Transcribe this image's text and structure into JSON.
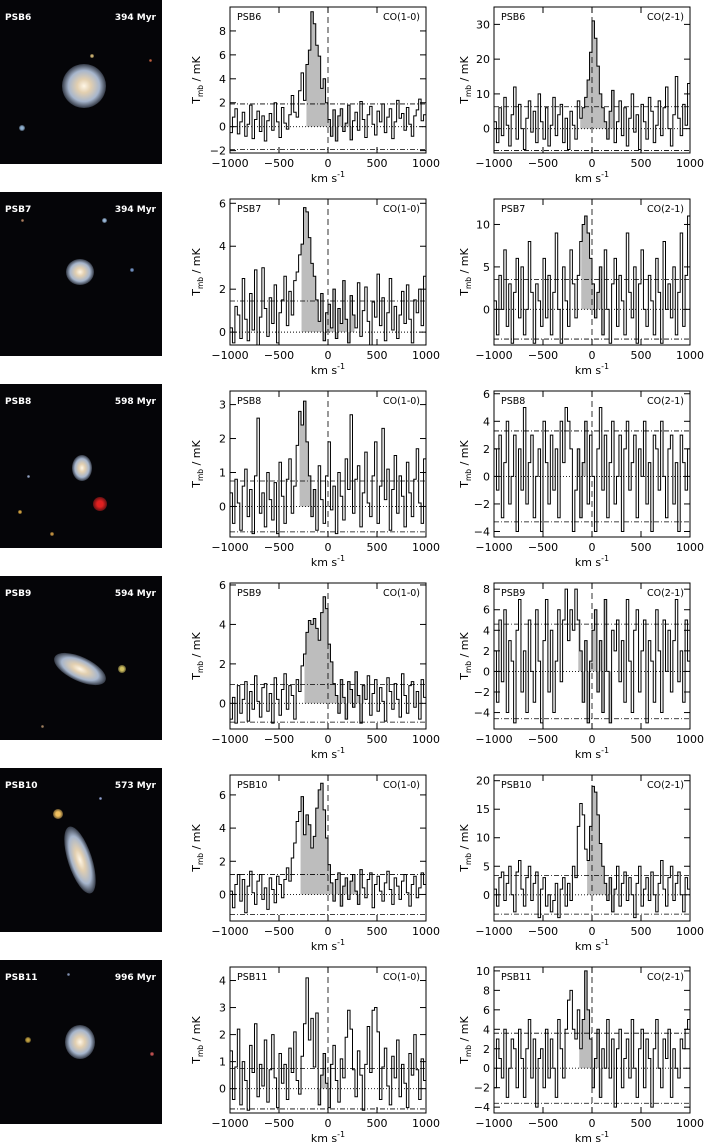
{
  "panels": [
    {
      "name": "PSB6",
      "age": "394 Myr",
      "thumb": {
        "stars": [
          {
            "c": "#8fb0d0"
          },
          {
            "c": "#c9b070"
          },
          {
            "c": "#c06040"
          }
        ]
      }
    },
    {
      "name": "PSB7",
      "age": "394 Myr",
      "thumb": {
        "stars": [
          {
            "c": "#9ab8d8"
          },
          {
            "c": "#b08060"
          },
          {
            "c": "#7090c0"
          }
        ]
      }
    },
    {
      "name": "PSB8",
      "age": "598 Myr",
      "thumb": {
        "stars": [
          {
            "c": "#e02020"
          },
          {
            "c": "#c09040"
          },
          {
            "c": "#d0a040"
          },
          {
            "c": "#90a0c0"
          }
        ]
      }
    },
    {
      "name": "PSB9",
      "age": "594 Myr",
      "thumb": {
        "stars": [
          {
            "c": "#d0c060"
          },
          {
            "c": "#a08060"
          }
        ]
      }
    },
    {
      "name": "PSB10",
      "age": "573 Myr",
      "thumb": {
        "stars": [
          {
            "c": "#f0c060"
          },
          {
            "c": "#90a0d0"
          }
        ]
      }
    },
    {
      "name": "PSB11",
      "age": "996 Myr",
      "thumb": {
        "stars": [
          {
            "c": "#c0a040"
          },
          {
            "c": "#8090b0"
          },
          {
            "c": "#c05050"
          }
        ]
      }
    }
  ],
  "xlabel": "km s",
  "xlabel_exp": "-1",
  "ylabel_main": "T",
  "ylabel_sub": "mb",
  "ylabel_unit": " / mK",
  "chart_data": [
    {
      "type": "line",
      "galaxy": "PSB6",
      "line": "CO(1-0)",
      "xlim": [
        -1000,
        1000
      ],
      "ylim": [
        -2.2,
        10
      ],
      "yticks": [
        -2,
        0,
        2,
        4,
        6,
        8
      ],
      "xticks": [
        -1000,
        -500,
        0,
        500,
        1000
      ],
      "rms": 1.9,
      "shade": [
        -220,
        250
      ],
      "y": [
        -0.5,
        0.8,
        1.5,
        -0.6,
        0.4,
        1.2,
        -0.8,
        0.2,
        1.8,
        -1.0,
        0.6,
        1.3,
        -0.4,
        0.9,
        -1.2,
        0.5,
        1.1,
        -0.3,
        2.0,
        0.4,
        -0.9,
        1.6,
        0.3,
        -0.2,
        1.0,
        2.6,
        1.2,
        0.8,
        3.0,
        4.5,
        2.2,
        5.2,
        6.4,
        9.6,
        8.6,
        6.8,
        5.9,
        3.2,
        4.0,
        2.0,
        0.6,
        -0.8,
        1.4,
        -1.2,
        0.9,
        1.5,
        -0.4,
        0.3,
        1.8,
        -1.1,
        0.5,
        1.2,
        -0.3,
        2.1,
        0.6,
        -0.9,
        1.0,
        1.7,
        0.2,
        -0.7,
        1.3,
        0.4,
        1.9,
        -0.5,
        0.8,
        1.5,
        -1.0,
        0.4,
        2.2,
        0.7,
        1.1,
        -0.3,
        1.6,
        0.2,
        -0.8,
        0.9,
        1.4,
        2.3,
        0.5,
        1.0
      ]
    },
    {
      "type": "line",
      "galaxy": "PSB6",
      "line": "CO(2-1)",
      "xlim": [
        -1000,
        1000
      ],
      "ylim": [
        -7,
        35
      ],
      "yticks": [
        0,
        10,
        20,
        30
      ],
      "xticks": [
        -1000,
        -500,
        0,
        500,
        1000
      ],
      "rms": 6.3,
      "shade": [
        -120,
        230
      ],
      "y": [
        2,
        -4,
        6,
        -2,
        9,
        1,
        -5,
        4,
        12,
        -3,
        7,
        0,
        -6,
        3,
        8,
        -1,
        5,
        -4,
        10,
        2,
        -3,
        6,
        -5,
        1,
        9,
        -2,
        4,
        7,
        -4,
        3,
        -6,
        5,
        1,
        -3,
        8,
        3,
        6,
        9,
        14,
        22,
        31,
        26,
        18,
        10,
        6,
        2,
        -3,
        5,
        11,
        -4,
        2,
        8,
        -2,
        6,
        -5,
        3,
        10,
        -1,
        4,
        -6,
        7,
        2,
        -3,
        9,
        5,
        -4,
        1,
        8,
        -2,
        6,
        12,
        0,
        -5,
        4,
        15,
        3,
        -2,
        7,
        1,
        13
      ]
    },
    {
      "type": "line",
      "galaxy": "PSB7",
      "line": "CO(1-0)",
      "xlim": [
        -1000,
        1000
      ],
      "ylim": [
        -0.6,
        6.2
      ],
      "yticks": [
        0,
        2,
        4,
        6
      ],
      "xticks": [
        -1000,
        -500,
        0,
        500,
        1000
      ],
      "rms": 1.45,
      "shade": [
        -270,
        270
      ],
      "y": [
        0.2,
        -0.5,
        1.2,
        0.8,
        -0.3,
        2.5,
        0.6,
        -0.4,
        1.8,
        0.1,
        2.9,
        -0.6,
        0.7,
        3.0,
        1.1,
        -0.2,
        1.6,
        0.4,
        2.2,
        -0.5,
        0.9,
        1.5,
        2.6,
        0.3,
        1.9,
        0.8,
        2.4,
        2.8,
        3.6,
        4.1,
        5.8,
        5.6,
        4.4,
        3.2,
        2.6,
        1.5,
        0.5,
        1.8,
        -0.4,
        0.9,
        1.3,
        0.2,
        2.0,
        -0.3,
        1.1,
        0.4,
        2.4,
        0.6,
        -0.5,
        1.7,
        0.8,
        0.2,
        2.3,
        -0.2,
        1.0,
        2.1,
        0.5,
        -0.6,
        1.4,
        0.7,
        2.7,
        0.3,
        1.6,
        -0.4,
        0.9,
        2.5,
        0.1,
        1.2,
        -0.3,
        0.8,
        1.9,
        0.4,
        2.2,
        0.6,
        -0.5,
        1.5,
        0.9,
        2.0,
        0.3,
        2.6
      ]
    },
    {
      "type": "line",
      "galaxy": "PSB7",
      "line": "CO(2-1)",
      "xlim": [
        -1000,
        1000
      ],
      "ylim": [
        -4.2,
        13
      ],
      "yticks": [
        0,
        5,
        10
      ],
      "xticks": [
        -1000,
        -500,
        0,
        500,
        1000
      ],
      "rms": 3.5,
      "shade": [
        -110,
        130
      ],
      "y": [
        1,
        -3,
        4,
        0,
        7,
        -2,
        3,
        -4,
        2,
        6,
        -1,
        5,
        -3,
        0,
        8,
        2,
        -4,
        3,
        1,
        -2,
        6,
        -1,
        4,
        -3,
        2,
        9,
        0,
        -4,
        5,
        1,
        -2,
        7,
        3,
        -1,
        4,
        8,
        10,
        11,
        9,
        6,
        3,
        -1,
        2,
        5,
        -3,
        7,
        0,
        -4,
        3,
        6,
        -2,
        4,
        1,
        -3,
        9,
        2,
        -1,
        5,
        -4,
        3,
        7,
        0,
        -2,
        4,
        1,
        -3,
        6,
        2,
        -4,
        8,
        0,
        3,
        -1,
        5,
        -3,
        2,
        9,
        -2,
        4,
        11
      ]
    },
    {
      "type": "line",
      "galaxy": "PSB8",
      "line": "CO(1-0)",
      "xlim": [
        -1000,
        1000
      ],
      "ylim": [
        -0.9,
        3.4
      ],
      "yticks": [
        0,
        1,
        2,
        3
      ],
      "xticks": [
        -1000,
        -500,
        0,
        500,
        1000
      ],
      "rms": 0.75,
      "shade": [
        -290,
        -130
      ],
      "y": [
        0.4,
        -0.5,
        0.8,
        0.1,
        -0.7,
        0.6,
        1.1,
        -0.3,
        0.5,
        -0.8,
        0.9,
        2.6,
        -0.2,
        0.4,
        -0.6,
        1.0,
        0.2,
        -0.4,
        0.7,
        -0.8,
        1.3,
        0.3,
        -0.5,
        0.8,
        1.4,
        -0.2,
        0.6,
        1.8,
        2.8,
        2.4,
        3.1,
        1.9,
        0.9,
        -0.3,
        0.5,
        -0.7,
        1.2,
        0.2,
        -0.5,
        0.9,
        1.9,
        -0.1,
        0.6,
        -0.8,
        1.0,
        0.3,
        -0.4,
        1.4,
        0.5,
        2.7,
        -0.2,
        0.8,
        1.2,
        -0.6,
        0.4,
        1.6,
        0.1,
        -0.3,
        0.9,
        1.9,
        -0.5,
        0.6,
        2.3,
        0.2,
        1.1,
        -0.7,
        0.5,
        1.5,
        -0.2,
        0.9,
        0.3,
        -0.6,
        1.3,
        0.4,
        -0.3,
        0.8,
        1.7,
        0.1,
        -0.5,
        1.4
      ]
    },
    {
      "type": "line",
      "galaxy": "PSB8",
      "line": "CO(2-1)",
      "xlim": [
        -1000,
        1000
      ],
      "ylim": [
        -4.4,
        6.2
      ],
      "yticks": [
        -4,
        -2,
        0,
        2,
        4,
        6
      ],
      "xticks": [
        -1000,
        -500,
        0,
        500,
        1000
      ],
      "rms": 3.3,
      "shade": [
        -160,
        -60
      ],
      "y": [
        2,
        -1,
        3,
        -3,
        1,
        4,
        -2,
        0,
        3,
        -4,
        2,
        -1,
        5,
        -2,
        1,
        3,
        -3,
        0,
        2,
        -4,
        4,
        1,
        -2,
        3,
        -1,
        2,
        -3,
        4,
        1,
        5,
        4,
        2,
        -4,
        -1,
        2,
        -3,
        1,
        4,
        -2,
        3,
        0,
        -4,
        2,
        5,
        -1,
        3,
        -3,
        1,
        4,
        -2,
        0,
        3,
        -4,
        2,
        4,
        -1,
        1,
        3,
        -3,
        2,
        0,
        4,
        -2,
        1,
        -4,
        3,
        2,
        -1,
        4,
        0,
        -3,
        2,
        3,
        -2,
        1,
        -4,
        3,
        1,
        -1,
        2
      ]
    },
    {
      "type": "line",
      "galaxy": "PSB9",
      "line": "CO(1-0)",
      "xlim": [
        -1000,
        1000
      ],
      "ylim": [
        -1.3,
        6.1
      ],
      "yticks": [
        0,
        2,
        4,
        6
      ],
      "xticks": [
        -1000,
        -500,
        0,
        500,
        1000
      ],
      "rms": 0.95,
      "shade": [
        -240,
        370
      ],
      "y": [
        -0.8,
        0.3,
        -1.0,
        0.9,
        -0.5,
        0.2,
        1.1,
        -0.9,
        0.6,
        -0.3,
        1.4,
        0.1,
        -0.7,
        0.8,
        1.0,
        -0.4,
        0.5,
        -1.0,
        1.3,
        0.2,
        -0.6,
        0.7,
        1.5,
        -0.3,
        0.9,
        0.4,
        -0.8,
        1.2,
        0.6,
        1.9,
        2.5,
        3.6,
        4.2,
        4.0,
        4.3,
        3.8,
        3.2,
        4.6,
        5.4,
        4.8,
        3.0,
        2.1,
        1.0,
        0.4,
        -0.5,
        1.2,
        0.3,
        -0.8,
        1.1,
        0.7,
        -0.2,
        1.6,
        0.4,
        -1.0,
        0.9,
        0.2,
        1.4,
        -0.6,
        0.5,
        1.2,
        -0.4,
        0.8,
        0.1,
        -0.9,
        1.3,
        0.6,
        -0.3,
        1.0,
        0.2,
        -0.7,
        1.5,
        0.4,
        -0.5,
        0.9,
        1.1,
        -0.2,
        0.6,
        -0.8,
        1.2,
        0.3
      ]
    },
    {
      "type": "line",
      "galaxy": "PSB9",
      "line": "CO(2-1)",
      "xlim": [
        -1000,
        1000
      ],
      "ylim": [
        -5.6,
        8.6
      ],
      "yticks": [
        -4,
        -2,
        0,
        2,
        4,
        6,
        8
      ],
      "xticks": [
        -1000,
        -500,
        0,
        500,
        1000
      ],
      "rms": 4.6,
      "shade": [
        -140,
        200
      ],
      "y": [
        2,
        -3,
        5,
        -1,
        6,
        -4,
        3,
        1,
        -5,
        4,
        7,
        -2,
        2,
        -4,
        5,
        0,
        -3,
        6,
        1,
        -5,
        3,
        7,
        -2,
        4,
        -4,
        1,
        6,
        -1,
        5,
        8,
        3,
        6,
        4,
        8,
        5,
        2,
        -3,
        3,
        -5,
        1,
        4,
        6,
        -2,
        3,
        -4,
        7,
        0,
        -5,
        4,
        2,
        5,
        -1,
        3,
        -3,
        7,
        1,
        -4,
        4,
        6,
        -2,
        2,
        5,
        -5,
        3,
        1,
        -3,
        6,
        2,
        -4,
        5,
        0,
        4,
        -2,
        3,
        7,
        -1,
        2,
        -3,
        5,
        1
      ]
    },
    {
      "type": "line",
      "galaxy": "PSB10",
      "line": "CO(1-0)",
      "xlim": [
        -1000,
        1000
      ],
      "ylim": [
        -1.6,
        7.2
      ],
      "yticks": [
        0,
        2,
        4,
        6
      ],
      "xticks": [
        -1000,
        -500,
        0,
        500,
        1000
      ],
      "rms": 1.2,
      "shade": [
        -280,
        340
      ],
      "y": [
        0.2,
        -0.8,
        0.6,
        1.2,
        -0.4,
        0.9,
        -1.1,
        0.5,
        1.4,
        0.1,
        -0.6,
        0.8,
        1.2,
        -0.3,
        0.4,
        -0.9,
        1.0,
        0.3,
        -0.5,
        1.1,
        0.6,
        -0.2,
        0.9,
        1.6,
        0.8,
        2.2,
        3.1,
        4.4,
        5.0,
        5.9,
        3.6,
        4.8,
        4.2,
        2.8,
        3.5,
        5.2,
        6.3,
        6.7,
        5.1,
        3.4,
        1.8,
        0.7,
        -0.4,
        0.9,
        1.3,
        -0.7,
        0.5,
        1.0,
        -0.3,
        0.8,
        1.2,
        0.2,
        -0.6,
        1.5,
        0.4,
        -0.2,
        0.9,
        1.3,
        -0.8,
        0.6,
        1.1,
        0.2,
        -0.4,
        0.7,
        1.4,
        0.3,
        -0.6,
        1.0,
        0.5,
        -0.3,
        0.8,
        1.2,
        0.1,
        -0.7,
        0.6,
        1.1,
        -0.2,
        0.4,
        1.3,
        0.6
      ]
    },
    {
      "type": "line",
      "galaxy": "PSB10",
      "line": "CO(2-1)",
      "xlim": [
        -1000,
        1000
      ],
      "ylim": [
        -4.6,
        21
      ],
      "yticks": [
        0,
        5,
        10,
        15,
        20
      ],
      "xticks": [
        -1000,
        -500,
        0,
        500,
        1000
      ],
      "rms": 3.4,
      "shade": [
        -50,
        250
      ],
      "y": [
        1,
        -2,
        3,
        4,
        -1,
        2,
        5,
        0,
        -3,
        4,
        6,
        1,
        -2,
        3,
        5,
        -1,
        2,
        4,
        -4,
        1,
        3,
        -2,
        0,
        -3,
        -1,
        2,
        -4,
        1,
        3,
        -2,
        2,
        -1,
        5,
        3,
        12,
        16,
        14,
        8,
        6,
        12,
        19,
        18,
        14,
        9,
        5,
        2,
        -1,
        3,
        -3,
        1,
        5,
        -2,
        2,
        4,
        -1,
        3,
        0,
        -4,
        2,
        5,
        -2,
        1,
        3,
        -1,
        4,
        0,
        -3,
        2,
        6,
        1,
        -2,
        3,
        5,
        -1,
        2,
        4,
        0,
        -3,
        3,
        1
      ]
    },
    {
      "type": "line",
      "galaxy": "PSB11",
      "line": "CO(1-0)",
      "xlim": [
        -1000,
        1000
      ],
      "ylim": [
        -0.9,
        4.5
      ],
      "yticks": [
        0,
        1,
        2,
        3,
        4
      ],
      "xticks": [
        -1000,
        -500,
        0,
        500,
        1000
      ],
      "rms": 0.75,
      "shade": [
        -90,
        40
      ],
      "y": [
        1.4,
        -0.4,
        0.8,
        2.2,
        -0.6,
        1.0,
        0.3,
        -0.8,
        1.6,
        0.6,
        2.4,
        -0.3,
        0.9,
        0.1,
        1.8,
        -0.5,
        0.7,
        2.0,
        0.4,
        -0.7,
        1.3,
        0.2,
        0.9,
        -0.4,
        1.5,
        0.6,
        2.1,
        0.3,
        -0.2,
        1.2,
        2.4,
        4.1,
        1.8,
        2.6,
        0.8,
        2.8,
        -0.6,
        0.5,
        1.3,
        0.2,
        -0.7,
        0.9,
        1.6,
        0.3,
        -0.5,
        1.1,
        0.4,
        1.9,
        2.9,
        2.2,
        0.7,
        -0.3,
        1.4,
        0.5,
        -0.8,
        0.9,
        2.3,
        0.6,
        2.9,
        3.0,
        2.1,
        -0.4,
        0.8,
        1.5,
        0.1,
        -0.6,
        1.2,
        0.4,
        1.8,
        -0.3,
        0.9,
        0.2,
        -0.7,
        1.3,
        0.5,
        2.0,
        0.7,
        -0.4,
        1.1,
        0.3
      ]
    },
    {
      "type": "line",
      "galaxy": "PSB11",
      "line": "CO(2-1)",
      "xlim": [
        -1000,
        1000
      ],
      "ylim": [
        -4.6,
        10.4
      ],
      "yticks": [
        -4,
        -2,
        0,
        2,
        4,
        6,
        8,
        10
      ],
      "xticks": [
        -1000,
        -500,
        0,
        500,
        1000
      ],
      "rms": 3.6,
      "shade": [
        -130,
        90
      ],
      "y": [
        -2,
        3,
        1,
        -1,
        4,
        -3,
        0,
        3,
        2,
        -2,
        4,
        1,
        -3,
        2,
        5,
        -1,
        3,
        -4,
        1,
        2,
        -2,
        4,
        -1,
        3,
        0,
        -3,
        5,
        2,
        -1,
        4,
        7,
        8,
        4,
        3,
        6,
        2,
        5,
        10,
        6,
        3,
        -2,
        1,
        4,
        -3,
        2,
        0,
        5,
        -1,
        3,
        -4,
        2,
        4,
        -2,
        1,
        3,
        -1,
        5,
        0,
        -3,
        2,
        4,
        -2,
        3,
        1,
        -4,
        2,
        5,
        0,
        -2,
        3,
        1,
        4,
        -3,
        2,
        0,
        -1,
        3,
        2,
        4,
        5
      ]
    }
  ]
}
